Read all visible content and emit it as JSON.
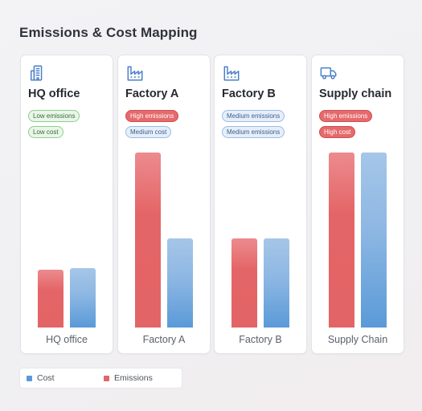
{
  "title": "Emissions & Cost Mapping",
  "colors": {
    "emissions": "#e46567",
    "cost": "#5a9ad8"
  },
  "cards": [
    {
      "name": "HQ office",
      "icon": "office-building-icon",
      "badges": [
        {
          "text": "Low emissions",
          "level": "low"
        },
        {
          "text": "Low cost",
          "level": "low"
        }
      ]
    },
    {
      "name": "Factory A",
      "icon": "factory-icon",
      "badges": [
        {
          "text": "High emissions",
          "level": "high"
        },
        {
          "text": "Medium cost",
          "level": "med"
        }
      ]
    },
    {
      "name": "Factory B",
      "icon": "factory-icon",
      "badges": [
        {
          "text": "Medium emissions",
          "level": "med"
        },
        {
          "text": "Medium emissions",
          "level": "med"
        }
      ]
    },
    {
      "name": "Supply chain",
      "icon": "truck-icon",
      "badges": [
        {
          "text": "High emissions",
          "level": "high"
        },
        {
          "text": "High cost",
          "level": "high"
        }
      ]
    }
  ],
  "legend": [
    {
      "label": "Cost"
    },
    {
      "label": "Emissions"
    }
  ],
  "chart_data": {
    "type": "bar",
    "categories": [
      "HQ office",
      "Factory A",
      "Factory B",
      "Supply Chain"
    ],
    "series": [
      {
        "name": "Emissions",
        "values": [
          33,
          100,
          51,
          100
        ]
      },
      {
        "name": "Cost",
        "values": [
          34,
          51,
          51,
          100
        ]
      }
    ],
    "ylim": [
      0,
      100
    ],
    "grid": false,
    "legend_position": "bottom-left"
  }
}
